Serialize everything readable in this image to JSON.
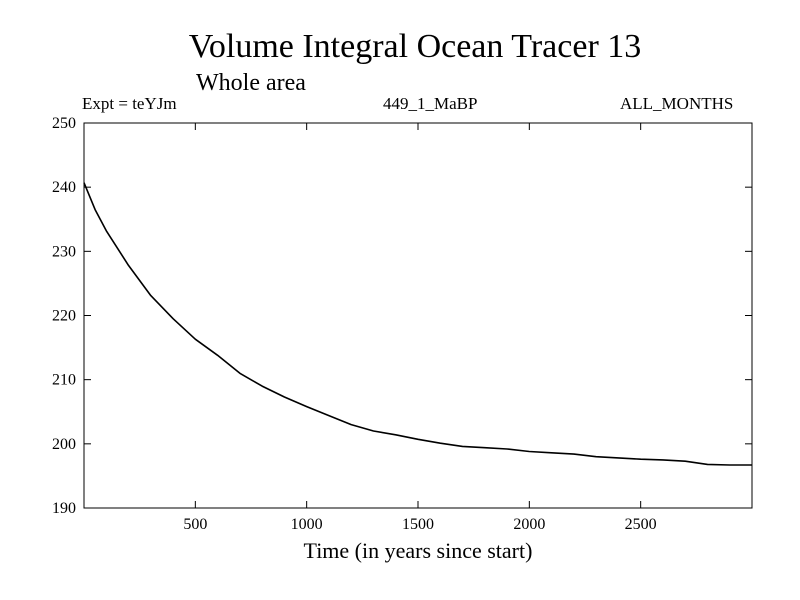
{
  "chart_data": {
    "type": "line",
    "title": "Volume Integral Ocean Tracer 13",
    "subtitle": "Whole area",
    "left_annotation": "Expt = teYJm",
    "center_annotation": "449_1_MaBP",
    "right_annotation": "ALL_MONTHS",
    "xlabel": "Time (in years since start)",
    "ylabel": "",
    "xlim": [
      0,
      3000
    ],
    "ylim": [
      190,
      250
    ],
    "xticks": [
      500,
      1000,
      1500,
      2000,
      2500
    ],
    "yticks": [
      190,
      200,
      210,
      220,
      230,
      240,
      250
    ],
    "grid": false,
    "series": [
      {
        "name": "Volume Integral Ocean Tracer 13",
        "color": "#000000",
        "x": [
          0,
          50,
          100,
          200,
          300,
          400,
          500,
          600,
          700,
          800,
          900,
          1000,
          1100,
          1200,
          1300,
          1400,
          1500,
          1600,
          1700,
          1800,
          1900,
          2000,
          2100,
          2200,
          2300,
          2400,
          2500,
          2600,
          2700,
          2800,
          2900,
          3000
        ],
        "y": [
          240.7,
          236.5,
          233.2,
          227.8,
          223.1,
          219.5,
          216.3,
          213.8,
          211.0,
          209.0,
          207.3,
          205.8,
          204.4,
          203.0,
          202.0,
          201.4,
          200.7,
          200.1,
          199.6,
          199.4,
          199.2,
          198.8,
          198.6,
          198.4,
          198.0,
          197.8,
          197.6,
          197.5,
          197.3,
          196.8,
          196.7,
          196.7
        ]
      }
    ]
  }
}
